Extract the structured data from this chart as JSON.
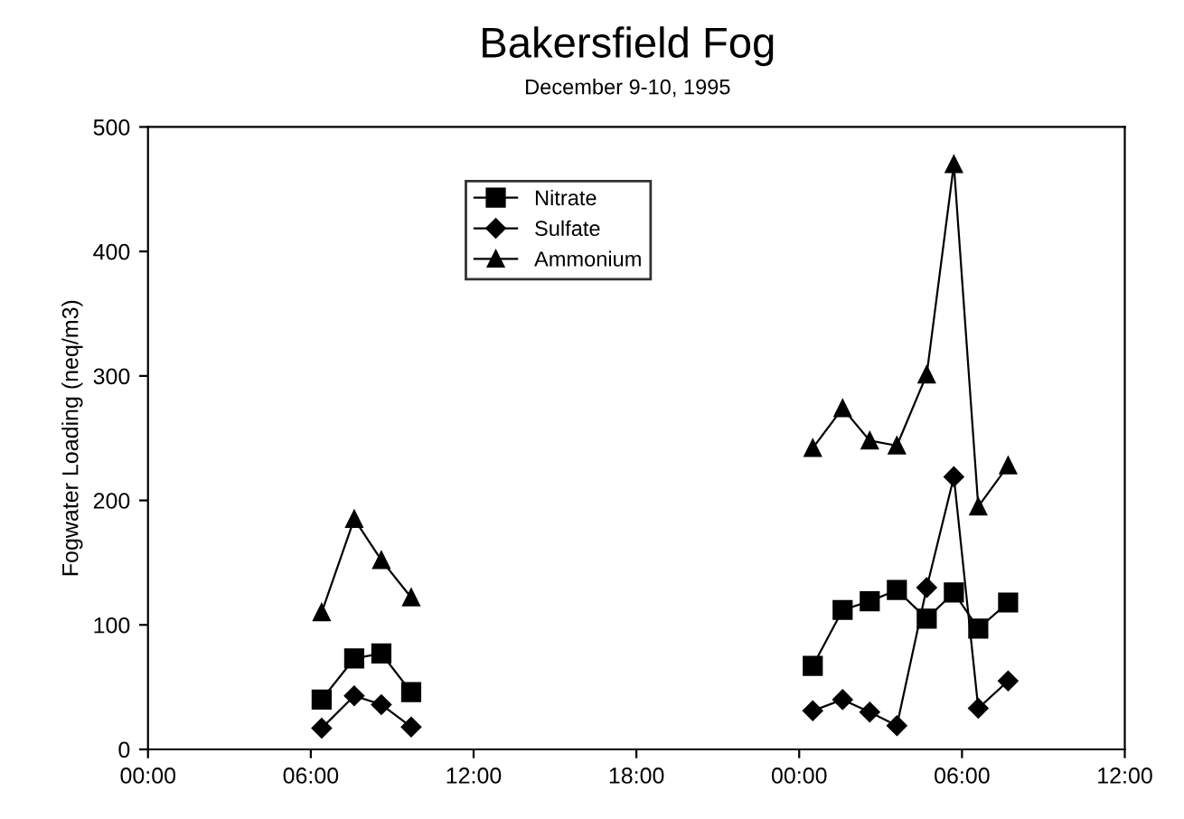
{
  "chart_data": {
    "type": "line",
    "title": "Bakersfield Fog",
    "subtitle": "December 9-10, 1995",
    "ylabel": "Fogwater Loading (neq/m3)",
    "xlim": [
      "1995-12-09T00:00",
      "1995-12-10T12:00"
    ],
    "xticks": [
      {
        "value": "1995-12-09T00:00",
        "label": "00:00"
      },
      {
        "value": "1995-12-09T06:00",
        "label": "06:00"
      },
      {
        "value": "1995-12-09T12:00",
        "label": "12:00"
      },
      {
        "value": "1995-12-09T18:00",
        "label": "18:00"
      },
      {
        "value": "1995-12-10T00:00",
        "label": "00:00"
      },
      {
        "value": "1995-12-10T06:00",
        "label": "06:00"
      },
      {
        "value": "1995-12-10T12:00",
        "label": "12:00"
      }
    ],
    "x": [
      "1995-12-09T06:24",
      "1995-12-09T07:36",
      "1995-12-09T08:36",
      "1995-12-09T09:42",
      "1995-12-09T16:00",
      "1995-12-10T00:30",
      "1995-12-10T01:36",
      "1995-12-10T02:36",
      "1995-12-10T03:36",
      "1995-12-10T04:42",
      "1995-12-10T05:42",
      "1995-12-10T06:36",
      "1995-12-10T07:42"
    ],
    "ylim": [
      0,
      500
    ],
    "yticks": [
      0,
      100,
      200,
      300,
      400,
      500
    ],
    "legend": "top",
    "line_style": "solid",
    "series": [
      {
        "name": "Nitrate",
        "color": "#000000",
        "marker": "square",
        "values": [
          40,
          73,
          77,
          46,
          null,
          67,
          112,
          119,
          128,
          105,
          126,
          97,
          118
        ]
      },
      {
        "name": "Sulfate",
        "color": "#000000",
        "marker": "diamond",
        "values": [
          17,
          43,
          36,
          18,
          null,
          31,
          40,
          30,
          19,
          130,
          219,
          33,
          55
        ]
      },
      {
        "name": "Ammonium",
        "color": "#000000",
        "marker": "triangle",
        "values": [
          110,
          185,
          152,
          122,
          null,
          242,
          274,
          248,
          244,
          301,
          470,
          195,
          228
        ]
      }
    ]
  }
}
